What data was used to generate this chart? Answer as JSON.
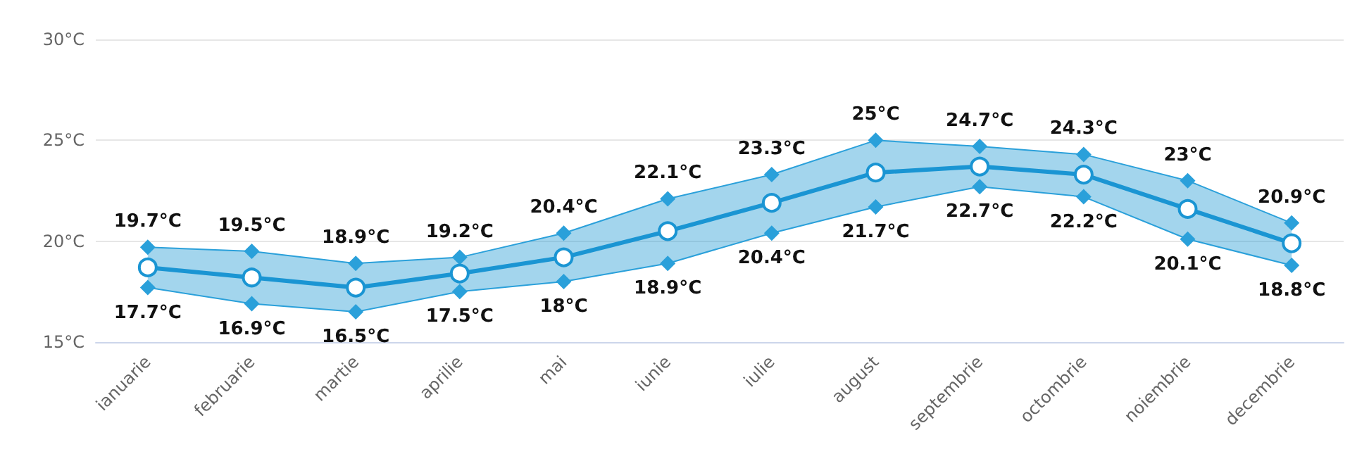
{
  "chart_data": {
    "type": "line",
    "categories": [
      "ianuarie",
      "februarie",
      "martie",
      "aprilie",
      "mai",
      "iunie",
      "iulie",
      "august",
      "septembrie",
      "octombrie",
      "noiembrie",
      "decembrie"
    ],
    "ylim": [
      15,
      30
    ],
    "yticks": [
      {
        "value": 15,
        "label": "15°C"
      },
      {
        "value": 20,
        "label": "20°C"
      },
      {
        "value": 25,
        "label": "25°C"
      },
      {
        "value": 30,
        "label": "30°C"
      }
    ],
    "grid": "y",
    "series": [
      {
        "color": "#1a95d3",
        "marker": "circle",
        "values": [
          18.7,
          18.2,
          17.7,
          18.4,
          19.2,
          20.5,
          21.9,
          23.4,
          23.7,
          23.3,
          21.6,
          19.9
        ],
        "lower": [
          17.7,
          16.9,
          16.5,
          17.5,
          18,
          18.9,
          20.4,
          21.7,
          22.7,
          22.2,
          20.1,
          18.8
        ],
        "upper": [
          19.7,
          19.5,
          18.9,
          19.2,
          20.4,
          22.1,
          23.3,
          25,
          24.7,
          24.3,
          23,
          20.9
        ]
      },
      {
        "color": "#2aa0da",
        "marker": "diamond",
        "values": [
          19.7,
          19.5,
          18.9,
          19.2,
          20.4,
          22.1,
          23.3,
          25,
          24.7,
          24.3,
          23,
          20.9
        ],
        "value_labels": [
          "19.7°C",
          "19.5°C",
          "18.9°C",
          "19.2°C",
          "20.4°C",
          "22.1°C",
          "23.3°C",
          "25°C",
          "24.7°C",
          "24.3°C",
          "23°C",
          "20.9°C"
        ]
      },
      {
        "color": "#2aa0da",
        "marker": "diamond",
        "values": [
          17.7,
          16.9,
          16.5,
          17.5,
          18,
          18.9,
          20.4,
          21.7,
          22.7,
          22.2,
          20.1,
          18.8
        ],
        "value_labels": [
          "17.7°C",
          "16.9°C",
          "16.5°C",
          "17.5°C",
          "18°C",
          "18.9°C",
          "20.4°C",
          "21.7°C",
          "22.7°C",
          "22.2°C",
          "20.1°C",
          "18.8°C"
        ]
      }
    ]
  }
}
